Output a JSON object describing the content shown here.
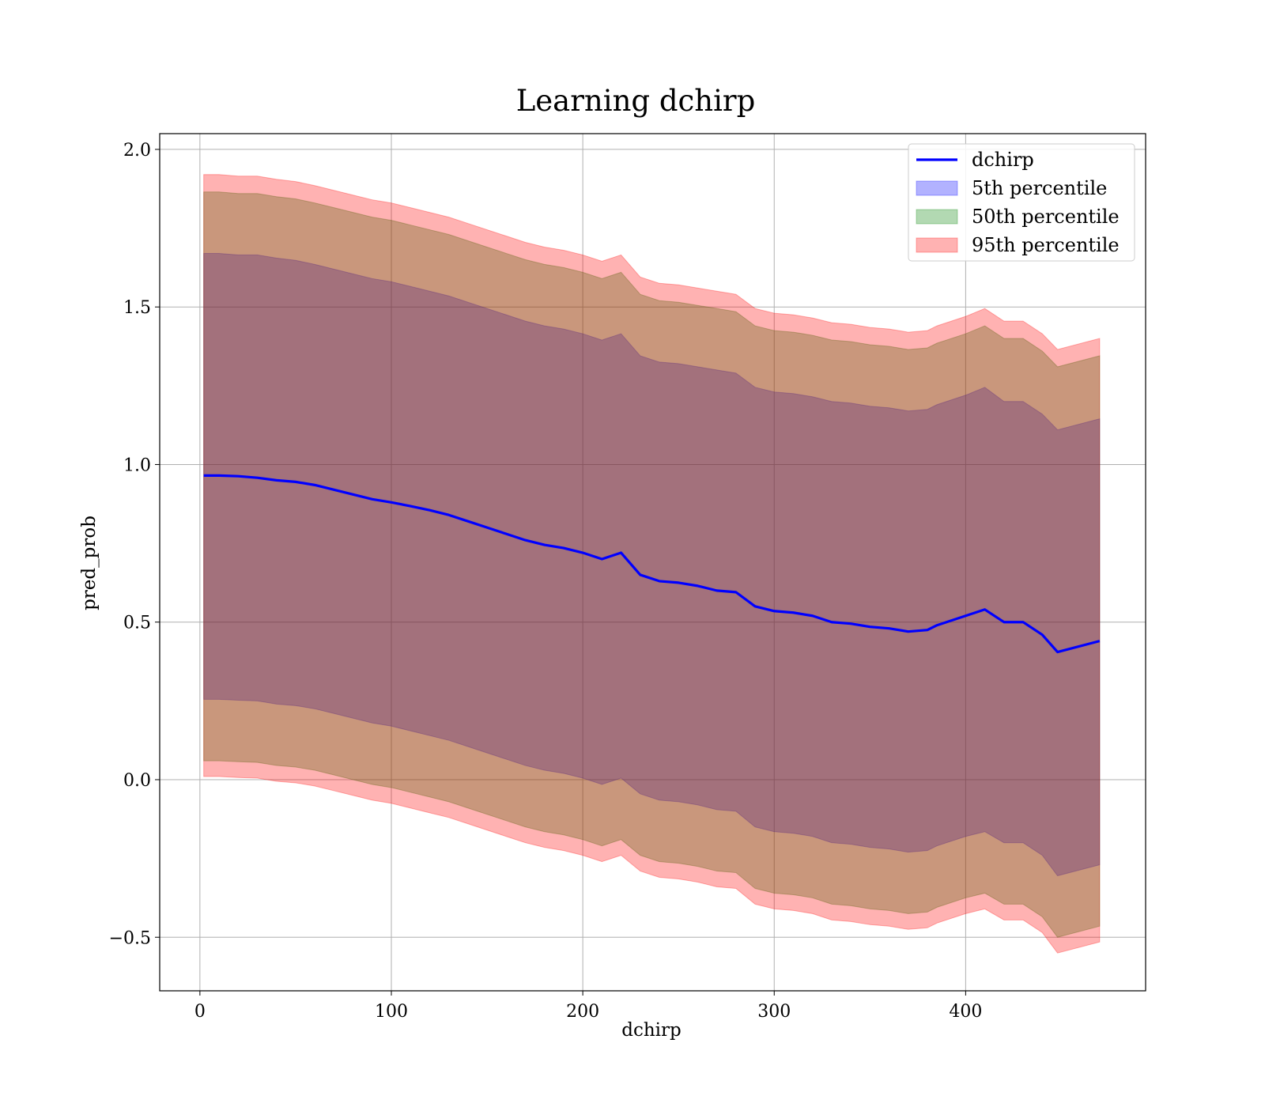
{
  "chart_data": {
    "type": "area",
    "title": "Learning dchirp",
    "xlabel": "dchirp",
    "ylabel": "pred_prob",
    "xlim": [
      -21,
      494
    ],
    "ylim": [
      -0.67,
      2.05
    ],
    "xticks": [
      0,
      100,
      200,
      300,
      400
    ],
    "xtick_labels": [
      "0",
      "100",
      "200",
      "300",
      "400"
    ],
    "yticks": [
      -0.5,
      0.0,
      0.5,
      1.0,
      1.5,
      2.0
    ],
    "ytick_labels": [
      "−0.5",
      "0.0",
      "0.5",
      "1.0",
      "1.5",
      "2.0"
    ],
    "grid": true,
    "legend_position": "top-right",
    "series": [
      {
        "name": "dchirp",
        "kind": "line",
        "color": "#0000ff",
        "x": [
          2,
          10,
          20,
          30,
          40,
          50,
          60,
          70,
          80,
          90,
          100,
          110,
          120,
          130,
          140,
          150,
          160,
          170,
          180,
          190,
          200,
          210,
          215,
          220,
          230,
          240,
          250,
          260,
          270,
          280,
          290,
          300,
          310,
          320,
          330,
          340,
          350,
          360,
          370,
          380,
          385,
          390,
          400,
          410,
          420,
          430,
          440,
          448,
          470
        ],
        "y": [
          0.965,
          0.965,
          0.963,
          0.958,
          0.95,
          0.945,
          0.935,
          0.92,
          0.905,
          0.89,
          0.88,
          0.868,
          0.855,
          0.84,
          0.82,
          0.8,
          0.78,
          0.76,
          0.745,
          0.735,
          0.72,
          0.7,
          0.71,
          0.72,
          0.65,
          0.63,
          0.625,
          0.615,
          0.6,
          0.595,
          0.55,
          0.535,
          0.53,
          0.52,
          0.5,
          0.495,
          0.485,
          0.48,
          0.47,
          0.475,
          0.49,
          0.5,
          0.52,
          0.54,
          0.5,
          0.5,
          0.46,
          0.405,
          0.44
        ]
      },
      {
        "name": "5th percentile",
        "kind": "band",
        "color": "#0000ff",
        "x": [
          2,
          10,
          20,
          30,
          40,
          50,
          60,
          70,
          80,
          90,
          100,
          110,
          120,
          130,
          140,
          150,
          160,
          170,
          180,
          190,
          200,
          210,
          215,
          220,
          230,
          240,
          250,
          260,
          270,
          280,
          290,
          300,
          310,
          320,
          330,
          340,
          350,
          360,
          370,
          380,
          385,
          390,
          400,
          410,
          420,
          430,
          440,
          448,
          470
        ],
        "upper": [
          1.67,
          1.67,
          1.665,
          1.665,
          1.655,
          1.648,
          1.635,
          1.62,
          1.605,
          1.59,
          1.58,
          1.565,
          1.55,
          1.535,
          1.515,
          1.495,
          1.475,
          1.455,
          1.44,
          1.43,
          1.415,
          1.395,
          1.405,
          1.415,
          1.345,
          1.325,
          1.32,
          1.31,
          1.3,
          1.29,
          1.245,
          1.23,
          1.225,
          1.215,
          1.2,
          1.195,
          1.185,
          1.18,
          1.17,
          1.175,
          1.19,
          1.2,
          1.22,
          1.245,
          1.2,
          1.2,
          1.16,
          1.11,
          1.145
        ],
        "lower": [
          0.255,
          0.255,
          0.252,
          0.25,
          0.24,
          0.235,
          0.225,
          0.21,
          0.195,
          0.18,
          0.17,
          0.155,
          0.14,
          0.125,
          0.105,
          0.085,
          0.065,
          0.045,
          0.03,
          0.02,
          0.005,
          -0.015,
          -0.005,
          0.005,
          -0.045,
          -0.065,
          -0.07,
          -0.08,
          -0.095,
          -0.1,
          -0.15,
          -0.165,
          -0.17,
          -0.18,
          -0.2,
          -0.205,
          -0.215,
          -0.22,
          -0.23,
          -0.225,
          -0.21,
          -0.2,
          -0.18,
          -0.165,
          -0.2,
          -0.2,
          -0.24,
          -0.305,
          -0.27
        ]
      },
      {
        "name": "50th percentile",
        "kind": "band",
        "color": "#008000",
        "x": [
          2,
          10,
          20,
          30,
          40,
          50,
          60,
          70,
          80,
          90,
          100,
          110,
          120,
          130,
          140,
          150,
          160,
          170,
          180,
          190,
          200,
          210,
          215,
          220,
          230,
          240,
          250,
          260,
          270,
          280,
          290,
          300,
          310,
          320,
          330,
          340,
          350,
          360,
          370,
          380,
          385,
          390,
          400,
          410,
          420,
          430,
          440,
          448,
          470
        ],
        "upper": [
          1.865,
          1.865,
          1.86,
          1.86,
          1.85,
          1.843,
          1.83,
          1.815,
          1.8,
          1.785,
          1.775,
          1.76,
          1.745,
          1.73,
          1.71,
          1.69,
          1.67,
          1.65,
          1.635,
          1.625,
          1.61,
          1.59,
          1.6,
          1.61,
          1.54,
          1.52,
          1.515,
          1.505,
          1.495,
          1.485,
          1.44,
          1.425,
          1.42,
          1.41,
          1.395,
          1.39,
          1.38,
          1.375,
          1.365,
          1.37,
          1.385,
          1.395,
          1.415,
          1.44,
          1.4,
          1.4,
          1.36,
          1.31,
          1.345
        ],
        "lower": [
          0.06,
          0.06,
          0.057,
          0.055,
          0.045,
          0.04,
          0.03,
          0.015,
          0.0,
          -0.015,
          -0.025,
          -0.04,
          -0.055,
          -0.07,
          -0.09,
          -0.11,
          -0.13,
          -0.15,
          -0.165,
          -0.175,
          -0.19,
          -0.21,
          -0.2,
          -0.19,
          -0.24,
          -0.26,
          -0.265,
          -0.275,
          -0.29,
          -0.295,
          -0.345,
          -0.36,
          -0.365,
          -0.375,
          -0.395,
          -0.4,
          -0.41,
          -0.415,
          -0.425,
          -0.42,
          -0.405,
          -0.395,
          -0.375,
          -0.36,
          -0.395,
          -0.395,
          -0.435,
          -0.5,
          -0.465
        ]
      },
      {
        "name": "95th percentile",
        "kind": "band",
        "color": "#ff0000",
        "x": [
          2,
          10,
          20,
          30,
          40,
          50,
          60,
          70,
          80,
          90,
          100,
          110,
          120,
          130,
          140,
          150,
          160,
          170,
          180,
          190,
          200,
          210,
          215,
          220,
          230,
          240,
          250,
          260,
          270,
          280,
          290,
          300,
          310,
          320,
          330,
          340,
          350,
          360,
          370,
          380,
          385,
          390,
          400,
          410,
          420,
          430,
          440,
          448,
          470
        ],
        "upper": [
          1.92,
          1.92,
          1.915,
          1.915,
          1.905,
          1.898,
          1.885,
          1.87,
          1.855,
          1.84,
          1.83,
          1.815,
          1.8,
          1.785,
          1.765,
          1.745,
          1.725,
          1.705,
          1.69,
          1.68,
          1.665,
          1.645,
          1.655,
          1.665,
          1.595,
          1.575,
          1.57,
          1.56,
          1.55,
          1.54,
          1.495,
          1.48,
          1.475,
          1.465,
          1.45,
          1.445,
          1.435,
          1.43,
          1.42,
          1.425,
          1.44,
          1.45,
          1.47,
          1.495,
          1.455,
          1.455,
          1.415,
          1.365,
          1.4
        ],
        "lower": [
          0.01,
          0.01,
          0.007,
          0.005,
          -0.005,
          -0.01,
          -0.02,
          -0.035,
          -0.05,
          -0.065,
          -0.075,
          -0.09,
          -0.105,
          -0.12,
          -0.14,
          -0.16,
          -0.18,
          -0.2,
          -0.215,
          -0.225,
          -0.24,
          -0.26,
          -0.25,
          -0.24,
          -0.29,
          -0.31,
          -0.315,
          -0.325,
          -0.34,
          -0.345,
          -0.395,
          -0.41,
          -0.415,
          -0.425,
          -0.445,
          -0.45,
          -0.46,
          -0.465,
          -0.475,
          -0.47,
          -0.455,
          -0.445,
          -0.425,
          -0.41,
          -0.445,
          -0.445,
          -0.485,
          -0.55,
          -0.515
        ]
      }
    ]
  }
}
